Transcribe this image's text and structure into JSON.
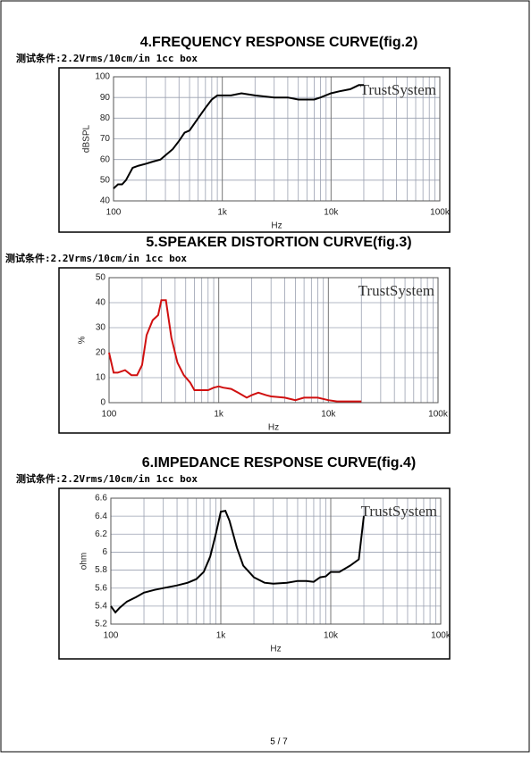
{
  "chart_data": [
    {
      "type": "line",
      "title": "4.FREQUENCY RESPONSE CURVE(fig.2)",
      "subtitle": "测试条件:2.2Vrms/10cm/in 1cc box",
      "annotation": "TrustSystem",
      "x_label": "Hz",
      "y_label": "dBSPL",
      "log_x": true,
      "grid": true,
      "color": "#000000",
      "x": [
        100,
        110,
        120,
        130,
        150,
        170,
        200,
        230,
        270,
        300,
        350,
        400,
        450,
        500,
        600,
        700,
        800,
        900,
        1000,
        1200,
        1500,
        2000,
        3000,
        4000,
        5000,
        6000,
        7000,
        8000,
        10000,
        12000,
        15000,
        18000,
        20000
      ],
      "values": [
        46,
        48,
        48,
        50,
        56,
        57,
        58,
        59,
        60,
        62,
        65,
        69,
        73,
        74,
        80,
        85,
        89,
        91,
        91,
        91,
        92,
        91,
        90,
        90,
        89,
        89,
        89,
        90,
        92,
        93,
        94,
        96,
        96
      ],
      "xlim": [
        100,
        100000
      ],
      "xticks": [
        100,
        {
          "value": 1000,
          "label": "1k"
        },
        {
          "value": 10000,
          "label": "10k"
        },
        {
          "value": 100000,
          "label": "100k"
        }
      ],
      "ylim": [
        40,
        100
      ],
      "yticks": [
        40,
        50,
        60,
        70,
        80,
        90,
        100
      ]
    },
    {
      "type": "line",
      "title": "5.SPEAKER DISTORTION CURVE(fig.3)",
      "subtitle": "测试条件:2.2Vrms/10cm/in 1cc box",
      "annotation": "TrustSystem",
      "x_label": "Hz",
      "y_label": "%",
      "log_x": true,
      "grid": true,
      "color": "#d01010",
      "x": [
        100,
        110,
        120,
        140,
        160,
        180,
        200,
        220,
        250,
        280,
        300,
        330,
        370,
        420,
        480,
        550,
        600,
        700,
        800,
        900,
        1000,
        1100,
        1300,
        1500,
        1800,
        2000,
        2300,
        2700,
        3000,
        4000,
        5000,
        6000,
        8000,
        10000,
        12000,
        15000,
        20000
      ],
      "values": [
        20,
        12,
        12,
        13,
        11,
        11,
        15,
        27,
        33,
        35,
        41,
        41,
        26,
        16,
        11,
        8,
        5,
        5,
        5,
        6,
        6.5,
        6,
        5.5,
        4,
        2,
        3,
        4,
        3,
        2.5,
        2,
        1,
        2,
        2,
        1,
        0.5,
        0.5,
        0.5
      ],
      "xlim": [
        100,
        100000
      ],
      "xticks": [
        100,
        {
          "value": 1000,
          "label": "1k"
        },
        {
          "value": 10000,
          "label": "10k"
        },
        {
          "value": 100000,
          "label": "100k"
        }
      ],
      "ylim": [
        0,
        50
      ],
      "yticks": [
        0,
        10,
        20,
        30,
        40,
        50
      ]
    },
    {
      "type": "line",
      "title": "6.IMPEDANCE RESPONSE CURVE(fig.4)",
      "subtitle": "测试条件:2.2Vrms/10cm/in 1cc box",
      "annotation": "TrustSystem",
      "x_label": "Hz",
      "y_label": "ohm",
      "log_x": true,
      "grid": true,
      "color": "#000000",
      "x": [
        100,
        110,
        120,
        140,
        170,
        200,
        250,
        300,
        400,
        500,
        600,
        700,
        800,
        900,
        1000,
        1100,
        1200,
        1400,
        1600,
        2000,
        2500,
        3000,
        4000,
        5000,
        6000,
        7000,
        8000,
        9000,
        10000,
        12000,
        15000,
        18000,
        20000
      ],
      "values": [
        5.4,
        5.33,
        5.38,
        5.45,
        5.5,
        5.55,
        5.58,
        5.6,
        5.63,
        5.66,
        5.7,
        5.78,
        5.95,
        6.2,
        6.45,
        6.46,
        6.35,
        6.05,
        5.85,
        5.72,
        5.66,
        5.65,
        5.66,
        5.68,
        5.68,
        5.67,
        5.72,
        5.73,
        5.78,
        5.78,
        5.85,
        5.92,
        6.4
      ],
      "xlim": [
        100,
        100000
      ],
      "xticks": [
        100,
        {
          "value": 1000,
          "label": "1k"
        },
        {
          "value": 10000,
          "label": "10k"
        },
        {
          "value": 100000,
          "label": "100k"
        }
      ],
      "ylim": [
        5.2,
        6.6
      ],
      "yticks": [
        5.2,
        5.4,
        5.6,
        5.8,
        6,
        6.2,
        6.4,
        6.6
      ]
    }
  ],
  "footer": {
    "page": "5 / 7"
  }
}
